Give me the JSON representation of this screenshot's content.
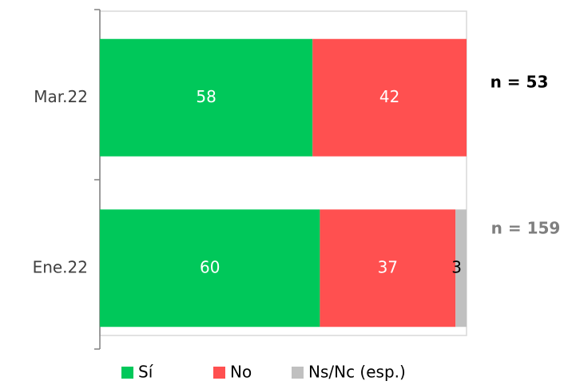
{
  "chart_data": {
    "type": "stacked_barh",
    "categories": [
      "Mar.22",
      "Ene.22"
    ],
    "series": [
      {
        "name": "Sí",
        "color": "#00c85a",
        "label_color": "#ffffff",
        "values": [
          58,
          60
        ]
      },
      {
        "name": "No",
        "color": "#ff5050",
        "label_color": "#ffffff",
        "values": [
          42,
          37
        ]
      },
      {
        "name": "Ns/Nc (esp.)",
        "color": "#c0c0c0",
        "label_color": "#000000",
        "values": [
          null,
          3
        ]
      }
    ],
    "xlim": [
      0,
      100
    ],
    "annotations": [
      {
        "text": "n = 53",
        "color": "#000000"
      },
      {
        "text": "n = 159",
        "color": "#7f7f7f"
      }
    ],
    "legend": "bottom"
  }
}
